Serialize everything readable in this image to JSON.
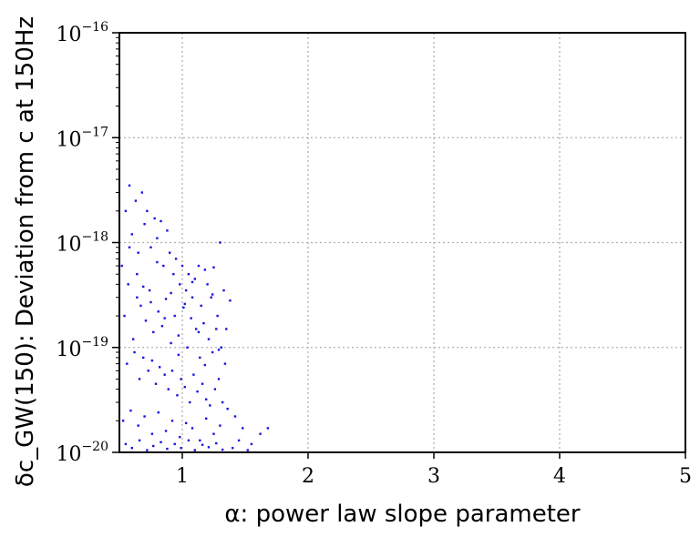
{
  "chart_data": {
    "type": "scatter",
    "title": "",
    "xlabel": "α: power law slope parameter",
    "ylabel": "δc_GW(150): Deviation from c at 150Hz",
    "xscale": "linear",
    "yscale": "log",
    "xlim": [
      0.5,
      5
    ],
    "ylim": [
      1e-20,
      1e-16
    ],
    "xticks": [
      {
        "value": 1,
        "label": "1"
      },
      {
        "value": 2,
        "label": "2"
      },
      {
        "value": 3,
        "label": "3"
      },
      {
        "value": 4,
        "label": "4"
      },
      {
        "value": 5,
        "label": "5"
      }
    ],
    "yticks": [
      {
        "value": 1e-20,
        "base": "10",
        "exp": "−20"
      },
      {
        "value": 1e-19,
        "base": "10",
        "exp": "−19"
      },
      {
        "value": 1e-18,
        "base": "10",
        "exp": "−18"
      },
      {
        "value": 1e-17,
        "base": "10",
        "exp": "−17"
      },
      {
        "value": 1e-16,
        "base": "10",
        "exp": "−16"
      }
    ],
    "grid": true,
    "point_color": "#1515e0",
    "series": [
      {
        "x": [
          0.52,
          0.55,
          0.58,
          0.6,
          0.63,
          0.65,
          0.68,
          0.7,
          0.72,
          0.75,
          0.78,
          0.8,
          0.83,
          0.85,
          0.88,
          0.9,
          0.93,
          0.95,
          0.98,
          1.0,
          1.03,
          1.05,
          1.08,
          1.1,
          1.13,
          1.15,
          1.18,
          1.2,
          1.23,
          1.25,
          1.28,
          1.3,
          1.33,
          1.35,
          1.38,
          0.54,
          0.57,
          0.61,
          0.64,
          0.67,
          0.71,
          0.74,
          0.77,
          0.81,
          0.84,
          0.87,
          0.91,
          0.94,
          0.97,
          1.01,
          1.04,
          1.07,
          1.11,
          1.14,
          1.17,
          1.21,
          1.24,
          1.27,
          1.31,
          1.34,
          0.56,
          0.62,
          0.66,
          0.69,
          0.73,
          0.76,
          0.79,
          0.82,
          0.86,
          0.89,
          0.92,
          0.96,
          0.99,
          1.02,
          1.06,
          1.09,
          1.12,
          1.16,
          1.19,
          1.22,
          1.26,
          1.29,
          1.32,
          0.53,
          0.59,
          0.65,
          0.7,
          0.76,
          0.81,
          0.87,
          0.92,
          0.98,
          1.03,
          1.08,
          1.14,
          1.19,
          1.25,
          1.3,
          1.36,
          1.42,
          1.48,
          1.55,
          1.62,
          1.68,
          0.55,
          0.6,
          0.66,
          0.72,
          0.77,
          0.83,
          0.88,
          0.94,
          0.99,
          1.05,
          1.1,
          1.16,
          1.21,
          1.27,
          1.32,
          1.4,
          1.45,
          1.52,
          0.58,
          0.64,
          0.69,
          0.75,
          0.8,
          0.86,
          0.91,
          0.97,
          1.02,
          1.08,
          1.13,
          1.18,
          1.24,
          1.29
        ],
        "y": [
          6e-19,
          2e-18,
          3.5e-18,
          1.2e-18,
          2.5e-18,
          8e-19,
          3e-18,
          1.5e-18,
          2e-18,
          9e-19,
          1.7e-18,
          1.1e-18,
          1.6e-18,
          6e-19,
          1.3e-18,
          8e-19,
          5e-19,
          7e-19,
          4e-19,
          6e-19,
          3.5e-19,
          5e-19,
          3e-19,
          4.5e-19,
          6e-19,
          2.5e-19,
          5.5e-19,
          4e-19,
          3e-19,
          5.8e-19,
          2e-19,
          1e-18,
          3.5e-19,
          1.5e-19,
          2.8e-19,
          2e-19,
          4e-19,
          1.2e-19,
          3e-19,
          2.5e-19,
          1.8e-19,
          3.5e-19,
          1.4e-19,
          2.2e-19,
          1.6e-19,
          2.9e-19,
          1.1e-19,
          2e-19,
          1.3e-19,
          2.4e-19,
          1e-19,
          1.9e-19,
          1.5e-19,
          8e-20,
          1.7e-19,
          1.2e-19,
          9e-20,
          1.5e-19,
          1e-19,
          7e-20,
          7e-20,
          9e-20,
          5e-20,
          8e-20,
          6e-20,
          7.5e-20,
          4.5e-20,
          6.5e-20,
          5.5e-20,
          4e-20,
          6e-20,
          3.5e-20,
          5e-20,
          4.2e-20,
          3e-20,
          5.5e-20,
          3.8e-20,
          4.5e-20,
          3.2e-20,
          2.8e-20,
          4e-20,
          5e-20,
          3e-20,
          2e-20,
          2.5e-20,
          1.8e-20,
          2.2e-20,
          1.5e-20,
          2.4e-20,
          1.6e-20,
          2e-20,
          1.4e-20,
          1.9e-20,
          1.7e-20,
          1.3e-20,
          2.1e-20,
          1.5e-20,
          1.8e-20,
          2.6e-20,
          2.2e-20,
          1.7e-20,
          1.2e-20,
          1.5e-20,
          1.7e-20,
          1.2e-20,
          1.1e-20,
          1.3e-20,
          1.05e-20,
          1.15e-20,
          1.25e-20,
          1.08e-20,
          1.2e-20,
          1.1e-20,
          1.3e-20,
          1.05e-20,
          1.18e-20,
          1.12e-20,
          1.22e-20,
          1.06e-20,
          1.1e-20,
          1.3e-20,
          1.05e-20,
          9e-19,
          5e-19,
          3.8e-19,
          2.7e-19,
          6.5e-19,
          1.9e-19,
          3.3e-19,
          8.5e-20,
          2.6e-19,
          4.2e-19,
          1.4e-19,
          6.8e-20,
          3.2e-19,
          9.5e-20
        ]
      }
    ]
  }
}
